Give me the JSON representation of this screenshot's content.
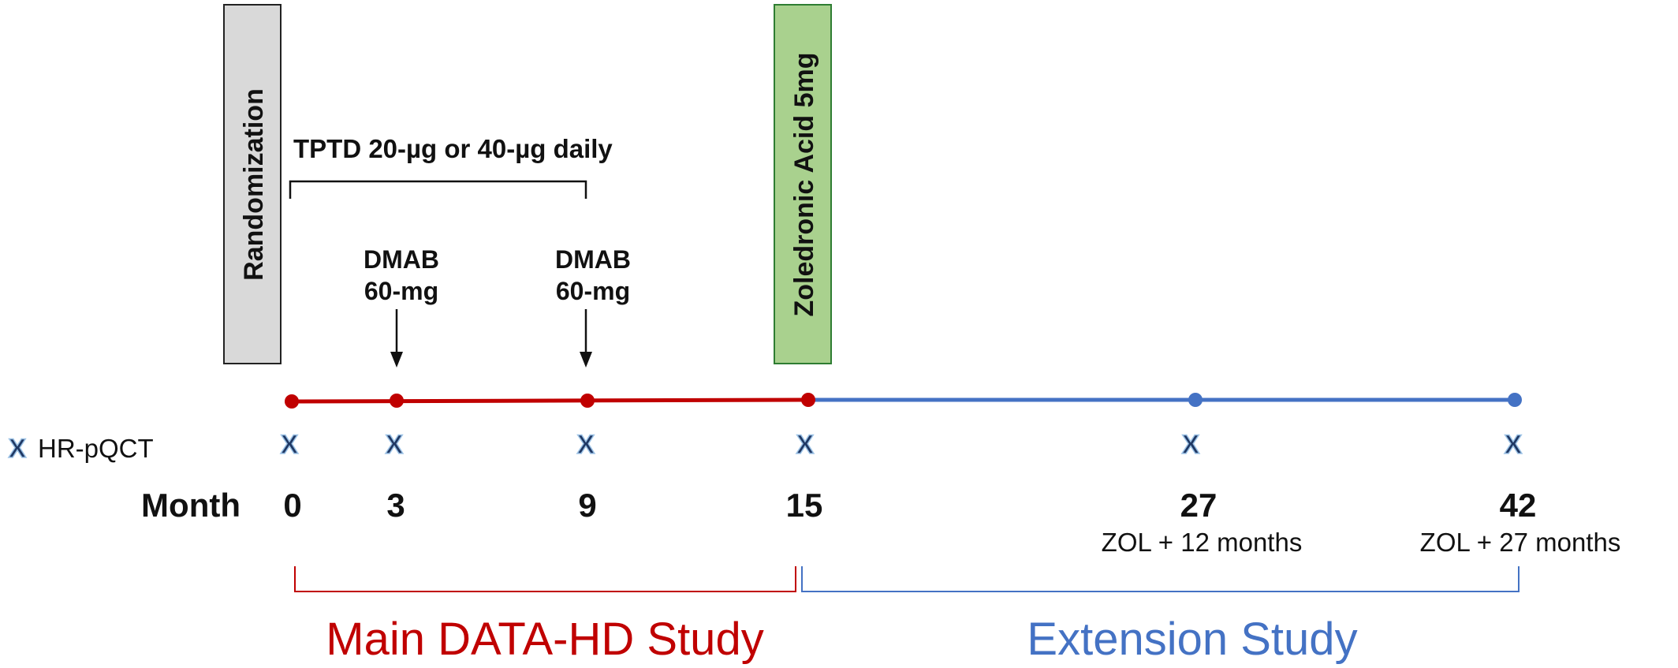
{
  "randomization_label": "Randomization",
  "zoledronic_label": "Zoledronic Acid 5mg",
  "tptd_label": "TPTD 20-µg or 40-µg daily",
  "dmab": [
    {
      "line1": "DMAB",
      "line2": "60-mg"
    },
    {
      "line1": "DMAB",
      "line2": "60-mg"
    }
  ],
  "legend": {
    "marker": "X",
    "label": "HR-pQCT"
  },
  "month_label": "Month",
  "months": [
    "0",
    "3",
    "9",
    "15",
    "27",
    "42"
  ],
  "month_notes": [
    "ZOL + 12 months",
    "ZOL + 27 months"
  ],
  "hrpqct_marker": "X",
  "studies": {
    "main": "Main DATA-HD Study",
    "extension": "Extension Study"
  },
  "colors": {
    "main": "#c00000",
    "extension": "#4472c4",
    "randomization_fill": "#d9d9d9",
    "zoledronic_fill": "#a9d18e",
    "marker_fill": "#1f3864"
  }
}
